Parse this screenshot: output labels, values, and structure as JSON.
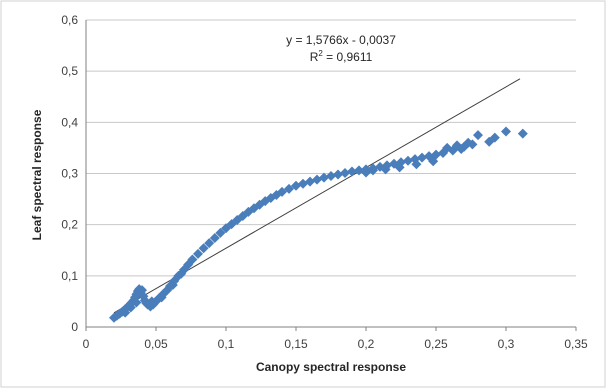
{
  "chart_data": {
    "type": "scatter",
    "xlabel": "Canopy spectral response",
    "ylabel": "Leaf spectral response",
    "xlim": [
      0,
      0.35
    ],
    "ylim": [
      0,
      0.6
    ],
    "x_ticks": [
      "0",
      "0,05",
      "0,1",
      "0,15",
      "0,2",
      "0,25",
      "0,3",
      "0,35"
    ],
    "y_ticks": [
      "0",
      "0,1",
      "0,2",
      "0,3",
      "0,4",
      "0,5",
      "0,6"
    ],
    "grid": "horizontal",
    "legend": "none",
    "colors": {
      "points": "#4a7ebb",
      "trendline": "#404040",
      "grid": "#c8c8c8",
      "axis": "#808080"
    },
    "trendline": {
      "slope": 1.5766,
      "intercept": -0.0037,
      "x_range": [
        0.02,
        0.31
      ]
    },
    "annotation": {
      "equation": "y = 1,5766x - 0,0037",
      "r2_prefix": "R",
      "r2_sup": "2",
      "r2_value": " = 0,9611"
    },
    "series": [
      {
        "points": [
          [
            0.02,
            0.018
          ],
          [
            0.022,
            0.022
          ],
          [
            0.024,
            0.026
          ],
          [
            0.026,
            0.03
          ],
          [
            0.028,
            0.035
          ],
          [
            0.03,
            0.04
          ],
          [
            0.032,
            0.046
          ],
          [
            0.034,
            0.052
          ],
          [
            0.035,
            0.058
          ],
          [
            0.036,
            0.064
          ],
          [
            0.037,
            0.07
          ],
          [
            0.038,
            0.074
          ],
          [
            0.039,
            0.068
          ],
          [
            0.04,
            0.072
          ],
          [
            0.041,
            0.06
          ],
          [
            0.042,
            0.052
          ],
          [
            0.044,
            0.044
          ],
          [
            0.046,
            0.04
          ],
          [
            0.048,
            0.044
          ],
          [
            0.05,
            0.05
          ],
          [
            0.052,
            0.056
          ],
          [
            0.055,
            0.064
          ],
          [
            0.058,
            0.072
          ],
          [
            0.06,
            0.08
          ],
          [
            0.063,
            0.09
          ],
          [
            0.066,
            0.1
          ],
          [
            0.07,
            0.112
          ],
          [
            0.073,
            0.122
          ],
          [
            0.076,
            0.132
          ],
          [
            0.08,
            0.143
          ],
          [
            0.084,
            0.154
          ],
          [
            0.088,
            0.164
          ],
          [
            0.092,
            0.174
          ],
          [
            0.096,
            0.184
          ],
          [
            0.1,
            0.193
          ],
          [
            0.104,
            0.201
          ],
          [
            0.108,
            0.209
          ],
          [
            0.112,
            0.217
          ],
          [
            0.116,
            0.225
          ],
          [
            0.12,
            0.232
          ],
          [
            0.124,
            0.239
          ],
          [
            0.128,
            0.246
          ],
          [
            0.132,
            0.252
          ],
          [
            0.136,
            0.258
          ],
          [
            0.14,
            0.264
          ],
          [
            0.145,
            0.27
          ],
          [
            0.15,
            0.276
          ],
          [
            0.155,
            0.28
          ],
          [
            0.16,
            0.284
          ],
          [
            0.165,
            0.288
          ],
          [
            0.17,
            0.292
          ],
          [
            0.175,
            0.295
          ],
          [
            0.18,
            0.298
          ],
          [
            0.185,
            0.301
          ],
          [
            0.19,
            0.304
          ],
          [
            0.195,
            0.306
          ],
          [
            0.2,
            0.308
          ],
          [
            0.205,
            0.31
          ],
          [
            0.21,
            0.313
          ],
          [
            0.215,
            0.316
          ],
          [
            0.22,
            0.319
          ],
          [
            0.225,
            0.322
          ],
          [
            0.23,
            0.325
          ],
          [
            0.235,
            0.328
          ],
          [
            0.24,
            0.331
          ],
          [
            0.245,
            0.334
          ],
          [
            0.25,
            0.337
          ],
          [
            0.255,
            0.34
          ],
          [
            0.258,
            0.35
          ],
          [
            0.262,
            0.345
          ],
          [
            0.265,
            0.355
          ],
          [
            0.268,
            0.348
          ],
          [
            0.27,
            0.352
          ],
          [
            0.273,
            0.36
          ],
          [
            0.276,
            0.357
          ],
          [
            0.28,
            0.375
          ],
          [
            0.288,
            0.362
          ],
          [
            0.292,
            0.37
          ],
          [
            0.3,
            0.382
          ],
          [
            0.312,
            0.378
          ],
          [
            0.2,
            0.302
          ],
          [
            0.205,
            0.306
          ],
          [
            0.214,
            0.308
          ],
          [
            0.224,
            0.312
          ],
          [
            0.236,
            0.318
          ],
          [
            0.248,
            0.324
          ],
          [
            0.028,
            0.028
          ],
          [
            0.032,
            0.038
          ],
          [
            0.036,
            0.048
          ],
          [
            0.043,
            0.047
          ],
          [
            0.047,
            0.05
          ],
          [
            0.054,
            0.058
          ],
          [
            0.062,
            0.082
          ],
          [
            0.068,
            0.104
          ]
        ]
      }
    ]
  }
}
